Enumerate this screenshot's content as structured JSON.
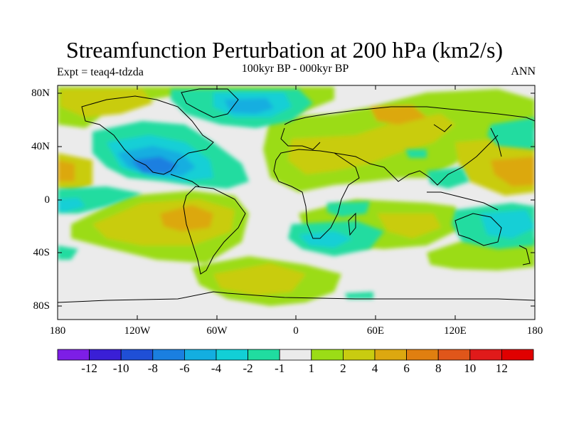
{
  "figure": {
    "title": "Streamfunction Perturbation at 200 hPa (km2/s)",
    "subtitle": "100kyr BP - 000kyr BP",
    "left_label": "Expt = teaq4-tdzda",
    "right_label": "ANN"
  },
  "axes": {
    "lat_ticks": [
      "80N",
      "40N",
      "0",
      "40S",
      "80S"
    ],
    "lon_ticks": [
      "180",
      "120W",
      "60W",
      "0",
      "60E",
      "120E",
      "180"
    ]
  },
  "colorbar": {
    "labels": [
      "-12",
      "-10",
      "-8",
      "-6",
      "-4",
      "-2",
      "-1",
      "1",
      "2",
      "4",
      "6",
      "8",
      "10",
      "12"
    ],
    "colors": [
      "#7d1ee6",
      "#3a1fd6",
      "#1f4fd6",
      "#1a7fe0",
      "#13aee0",
      "#12cfd6",
      "#20dca0",
      "#ebebeb",
      "#9bdc16",
      "#c9cc10",
      "#dca810",
      "#e07f10",
      "#e0561a",
      "#e01a1a",
      "#e00000"
    ]
  },
  "colors": {
    "land_outline": "#000000",
    "background": "#ebebeb"
  }
}
